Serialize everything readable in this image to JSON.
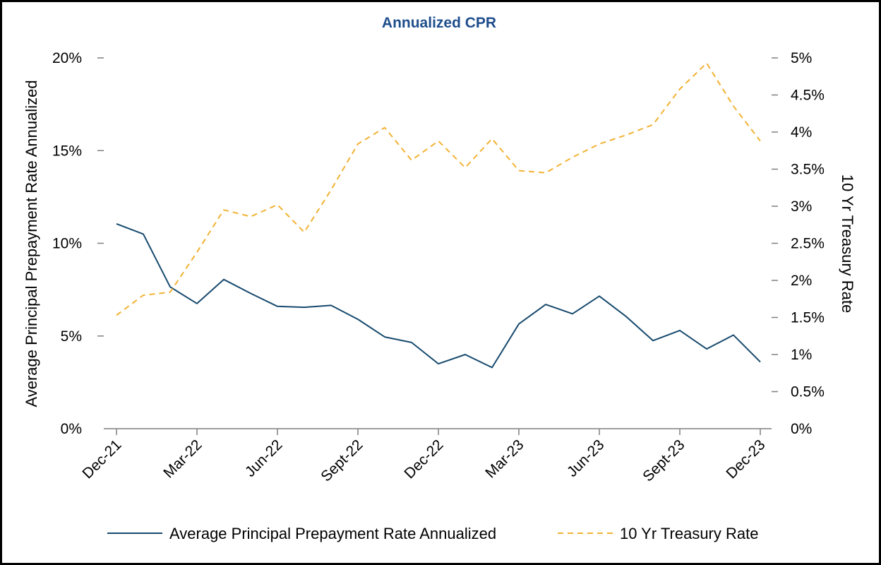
{
  "chart_data": {
    "type": "line",
    "title": "Annualized CPR",
    "xlabel": "",
    "ylabel": "Average Principal Prepayment Rate Annualized",
    "y2label": "10 Yr Treasury Rate",
    "x": [
      "Dec-21",
      "Jan-22",
      "Feb-22",
      "Mar-22",
      "Apr-22",
      "May-22",
      "Jun-22",
      "Jul-22",
      "Aug-22",
      "Sept-22",
      "Oct-22",
      "Nov-22",
      "Dec-22",
      "Jan-23",
      "Feb-23",
      "Mar-23",
      "Apr-23",
      "May-23",
      "Jun-23",
      "Jul-23",
      "Aug-23",
      "Sept-23",
      "Oct-23",
      "Nov-23",
      "Dec-23"
    ],
    "x_tick_labels": [
      "Dec-21",
      "Mar-22",
      "Jun-22",
      "Sept-22",
      "Dec-22",
      "Mar-23",
      "Jun-23",
      "Sept-23",
      "Dec-23"
    ],
    "ylim": [
      0,
      20
    ],
    "y_tick_labels": [
      "0%",
      "5%",
      "10%",
      "15%",
      "20%"
    ],
    "y2lim": [
      0,
      5
    ],
    "y2_tick_labels": [
      "0%",
      "0.5%",
      "1%",
      "1.5%",
      "2%",
      "2.5%",
      "3%",
      "3.5%",
      "4%",
      "4.5%",
      "5%"
    ],
    "legend_position": "bottom",
    "grid": false,
    "colors": {
      "cpr": "#174A6E",
      "treasury": "#F2B233",
      "title": "#1F4E8C",
      "axis": "#7F7F7F"
    },
    "series": [
      {
        "name": "Average Principal Prepayment Rate Annualized",
        "axis": "left",
        "style": "solid",
        "values": [
          11.05,
          10.5,
          7.65,
          6.75,
          8.05,
          7.3,
          6.6,
          6.55,
          6.65,
          5.9,
          4.95,
          4.65,
          3.5,
          4.0,
          3.3,
          5.65,
          6.7,
          6.2,
          7.15,
          6.05,
          4.75,
          5.3,
          4.3,
          5.05,
          3.6
        ]
      },
      {
        "name": "10 Yr Treasury Rate",
        "axis": "right",
        "style": "dashed",
        "values": [
          1.53,
          1.8,
          1.84,
          2.38,
          2.95,
          2.86,
          3.02,
          2.65,
          3.22,
          3.84,
          4.06,
          3.62,
          3.88,
          3.52,
          3.91,
          3.48,
          3.45,
          3.66,
          3.84,
          3.96,
          4.1,
          4.58,
          4.93,
          4.35,
          3.88
        ]
      }
    ]
  }
}
